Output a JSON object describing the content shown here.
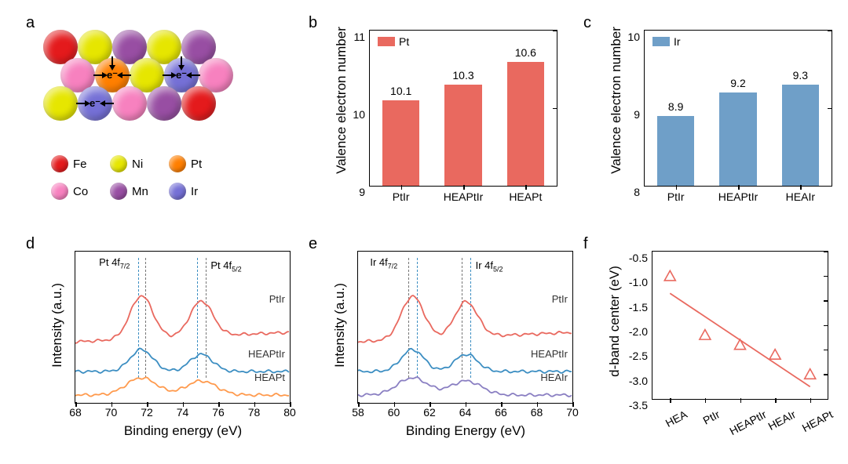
{
  "labels": {
    "a": "a",
    "b": "b",
    "c": "c",
    "d": "d",
    "e": "e",
    "f": "f"
  },
  "panel_a": {
    "colors": {
      "Fe": "#e41a1c",
      "Ni": "#e6e600",
      "Pt": "#ff7f00",
      "Co": "#f781bf",
      "Mn": "#984ea3",
      "Ir": "#7570d6"
    },
    "legend": [
      {
        "name": "Fe",
        "color": "#e41a1c"
      },
      {
        "name": "Ni",
        "color": "#e6e600"
      },
      {
        "name": "Pt",
        "color": "#ff7f00"
      },
      {
        "name": "Co",
        "color": "#f781bf"
      },
      {
        "name": "Mn",
        "color": "#984ea3"
      },
      {
        "name": "Ir",
        "color": "#7570d6"
      }
    ],
    "e_label": "e⁻",
    "atoms_row1": [
      "Fe",
      "Ni",
      "Mn",
      "Ni",
      "Mn"
    ],
    "atoms_row2": [
      "Co",
      "Pt",
      "Ni",
      "Ir",
      "Co"
    ],
    "atoms_row3": [
      "Ni",
      "Ir",
      "Co",
      "Mn",
      "Fe"
    ],
    "atom_diameter": 44
  },
  "panel_b": {
    "type": "bar",
    "title_legend": "Pt",
    "categories": [
      "PtIr",
      "HEAPtIr",
      "HEAPt"
    ],
    "values": [
      10.1,
      10.3,
      10.6
    ],
    "bar_color": "#e9695f",
    "ylim": [
      9,
      11
    ],
    "yticks": [
      9,
      10,
      11
    ],
    "ylabel": "Valence electron number",
    "value_fontsize": 14
  },
  "panel_c": {
    "type": "bar",
    "title_legend": "Ir",
    "categories": [
      "PtIr",
      "HEAPtIr",
      "HEAIr"
    ],
    "values": [
      8.9,
      9.2,
      9.3
    ],
    "bar_color": "#6f9fc8",
    "ylim": [
      8,
      10
    ],
    "yticks": [
      8,
      9,
      10
    ],
    "ylabel": "Valence electron number",
    "value_fontsize": 14
  },
  "panel_d": {
    "type": "xps",
    "xlim": [
      68,
      80
    ],
    "xticks": [
      68,
      70,
      72,
      74,
      76,
      78,
      80
    ],
    "xlabel": "Binding energy (eV)",
    "ylabel": "Intensity (a.u.)",
    "peak_labels": [
      "Pt 4f₇/₂",
      "Pt 4f₅/₂"
    ],
    "series": [
      {
        "name": "PtIr",
        "color": "#e9695f",
        "offset": 78
      },
      {
        "name": "HEAPtIr",
        "color": "#3c8ec2",
        "offset": 40
      },
      {
        "name": "HEAPt",
        "color": "#ff9a4d",
        "offset": 10
      }
    ],
    "dash_positions": [
      71.5,
      71.9,
      74.8,
      75.3
    ],
    "dash_colors": [
      "#3c8ec2",
      "#777",
      "#3c8ec2",
      "#777"
    ]
  },
  "panel_e": {
    "type": "xps",
    "xlim": [
      58,
      70
    ],
    "xticks": [
      58,
      60,
      62,
      64,
      66,
      68,
      70
    ],
    "xlabel": "Binding Energy (eV)",
    "ylabel": "Intensity (a.u.)",
    "peak_labels": [
      "Ir 4f₇/₂",
      "Ir 4f₅/₂"
    ],
    "series": [
      {
        "name": "PtIr",
        "color": "#e9695f",
        "offset": 78
      },
      {
        "name": "HEAPtIr",
        "color": "#3c8ec2",
        "offset": 40
      },
      {
        "name": "HEAIr",
        "color": "#8a7fc2",
        "offset": 10
      }
    ],
    "dash_positions": [
      60.8,
      61.3,
      63.8,
      64.3
    ],
    "dash_colors": [
      "#777",
      "#3c8ec2",
      "#777",
      "#3c8ec2"
    ]
  },
  "panel_f": {
    "type": "scatter",
    "ylabel": "d-band center (eV)",
    "ylim": [
      -3.5,
      -0.5
    ],
    "yticks": [
      -3.5,
      -3.0,
      -2.5,
      -2.0,
      -1.5,
      -1.0,
      -0.5
    ],
    "categories": [
      "HEA",
      "PtIr",
      "HEAPtIr",
      "HEAIr",
      "HEAPt"
    ],
    "values": [
      -1.0,
      -2.2,
      -2.4,
      -2.6,
      -3.0
    ],
    "marker_color": "#e9695f",
    "line_color": "#e9695f",
    "line_fit": {
      "y0": -1.35,
      "y4": -3.25
    }
  }
}
